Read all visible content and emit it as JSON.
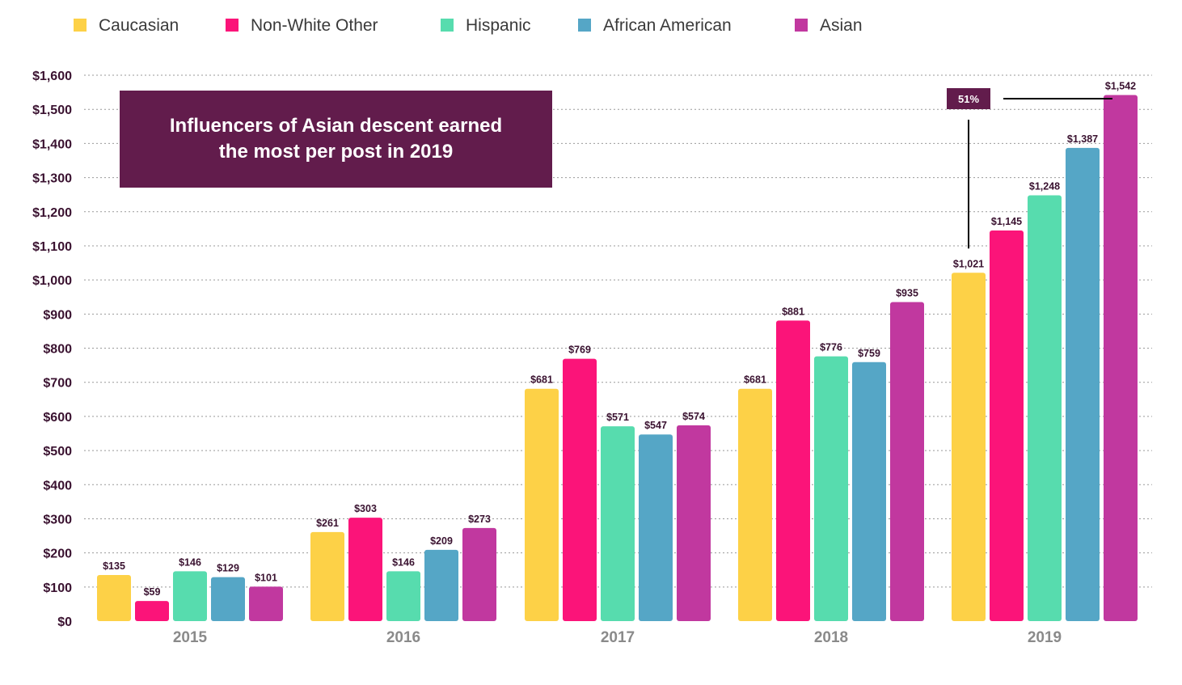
{
  "chart_data": {
    "type": "bar",
    "categories": [
      "2015",
      "2016",
      "2017",
      "2018",
      "2019"
    ],
    "series": [
      {
        "name": "Caucasian",
        "color": "#FDD147",
        "values": [
          135,
          261,
          681,
          681,
          1021
        ],
        "labels": [
          "$135",
          "$261",
          "$681",
          "$681",
          "$1,021"
        ]
      },
      {
        "name": "Non-White Other",
        "color": "#FB1479",
        "values": [
          59,
          303,
          769,
          881,
          1145
        ],
        "labels": [
          "$59",
          "$303",
          "$769",
          "$881",
          "$1,145"
        ]
      },
      {
        "name": "Hispanic",
        "color": "#57DCAE",
        "values": [
          146,
          146,
          571,
          776,
          1248
        ],
        "labels": [
          "$146",
          "$146",
          "$571",
          "$776",
          "$1,248"
        ]
      },
      {
        "name": "African American",
        "color": "#55A6C6",
        "values": [
          129,
          209,
          547,
          759,
          1387
        ],
        "labels": [
          "$129",
          "$209",
          "$547",
          "$759",
          "$1,387"
        ]
      },
      {
        "name": "Asian",
        "color": "#C1389F",
        "values": [
          101,
          273,
          574,
          935,
          1542
        ],
        "labels": [
          "$101",
          "$273",
          "$574",
          "$935",
          "$1,542"
        ]
      }
    ],
    "yticks": [
      0,
      100,
      200,
      300,
      400,
      500,
      600,
      700,
      800,
      900,
      1000,
      1100,
      1200,
      1300,
      1400,
      1500,
      1600
    ],
    "ytick_labels": [
      "$0",
      "$100",
      "$200",
      "$300",
      "$400",
      "$500",
      "$600",
      "$700",
      "$800",
      "$900",
      "$1,000",
      "$1,100",
      "$1,200",
      "$1,300",
      "$1,400",
      "$1,500",
      "$1,600"
    ],
    "ylim": [
      0,
      1600
    ],
    "grid": "horizontal dotted",
    "legend_position": "top-left",
    "callout_text": "Influencers of Asian descent earned the most per post in 2019",
    "annotation": {
      "label": "51%",
      "from_series": "Caucasian",
      "to_series": "Asian",
      "category": "2019"
    },
    "colors": {
      "callout_bg": "#621C4C",
      "label_text": "#3A1230",
      "axis_text": "#3A1230",
      "category_text": "#8A8A8A",
      "grid": "#999999"
    }
  }
}
